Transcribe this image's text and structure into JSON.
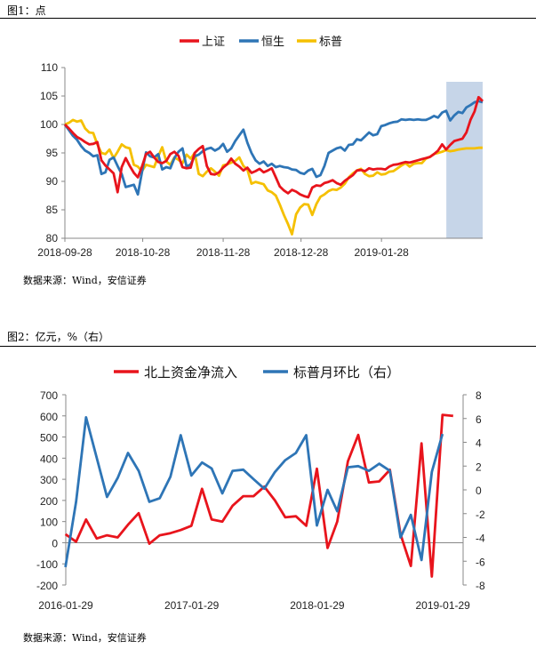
{
  "figure1": {
    "caption": "图1：点",
    "source": "数据来源：Wind，安信证券"
  },
  "figure2": {
    "caption": "图2：亿元，%（右）",
    "source": "数据来源：Wind，安信证券"
  },
  "colors": {
    "red": "#e8141c",
    "blue": "#2e75b6",
    "yellow": "#f5c000",
    "shade": "#c6d5e8"
  },
  "chart_data": [
    {
      "type": "line",
      "ylim": [
        80,
        110
      ],
      "yticks": [
        80,
        85,
        90,
        95,
        100,
        105,
        110
      ],
      "x_range": [
        "2018-09-28",
        "2019-03-08"
      ],
      "x_tick_labels": [
        "2018-09-28",
        "2018-10-28",
        "2018-11-28",
        "2018-12-28",
        "2019-01-28"
      ],
      "shaded_region": [
        "2019-02-22",
        "2019-03-08"
      ],
      "series": [
        {
          "name": "上证",
          "color": "#e8141c",
          "values": [
            100,
            99.3,
            98.5,
            97.8,
            97.4,
            96.9,
            96.5,
            96.6,
            96.9,
            93.7,
            92.8,
            92.1,
            91.4,
            88.1,
            92.5,
            94.1,
            92.7,
            91.5,
            90.7,
            92.6,
            94.8,
            95.2,
            94.2,
            93.4,
            93.2,
            93.6,
            94.8,
            95.2,
            94.5,
            92.5,
            92.3,
            92.4,
            95.0,
            95.7,
            96.2,
            92.7,
            91.3,
            91.2,
            91.6,
            92.4,
            93.0,
            94.0,
            93.1,
            92.6,
            91.9,
            92.4,
            91.5,
            91.8,
            92.2,
            91.6,
            91.9,
            92.3,
            90.7,
            89.1,
            88.4,
            87.9,
            88.5,
            88.2,
            87.7,
            87.4,
            87.2,
            88.9,
            89.3,
            89.2,
            89.7,
            89.9,
            90.2,
            89.7,
            89.4,
            90.1,
            90.6,
            91.1,
            91.9,
            92.0,
            91.8,
            92.3,
            92.1,
            92.2,
            92.2,
            92.1,
            92.6,
            92.9,
            93.0,
            93.2,
            93.4,
            93.3,
            93.5,
            93.7,
            93.9,
            94.1,
            94.3,
            94.8,
            95.4,
            96.5,
            95.6,
            96.4,
            97.1,
            97.3,
            97.5,
            98.6,
            100.8,
            102.3,
            104.8,
            104.1
          ]
        },
        {
          "name": "恒生",
          "color": "#2e75b6",
          "values": [
            100,
            99.0,
            98.0,
            97.3,
            96.2,
            95.4,
            95.0,
            94.4,
            94.6,
            91.3,
            91.6,
            93.8,
            94.2,
            92.7,
            91.3,
            89.0,
            89.2,
            89.4,
            87.7,
            91.6,
            95.1,
            94.4,
            94.2,
            94.8,
            92.1,
            92.5,
            92.3,
            94.1,
            95.2,
            95.8,
            92.6,
            93.0,
            94.4,
            94.7,
            95.3,
            95.7,
            95.9,
            95.4,
            95.8,
            96.6,
            95.2,
            95.8,
            97.1,
            98.1,
            99.1,
            96.8,
            95.0,
            93.7,
            93.1,
            93.5,
            92.7,
            93.1,
            92.5,
            92.7,
            92.5,
            92.4,
            92.1,
            92.0,
            91.5,
            91.3,
            91.9,
            92.2,
            90.8,
            91.1,
            92.7,
            95.0,
            95.4,
            95.8,
            96.0,
            95.4,
            96.4,
            96.5,
            97.4,
            97.2,
            97.9,
            98.6,
            98.1,
            98.3,
            99.7,
            99.9,
            100.2,
            100.4,
            100.5,
            100.9,
            100.8,
            100.9,
            100.8,
            100.9,
            100.8,
            100.8,
            101.1,
            101.5,
            101.2,
            102.1,
            102.4,
            100.7,
            101.6,
            102.2,
            102.0,
            103.0,
            103.4,
            103.9,
            104.1,
            103.9
          ]
        },
        {
          "name": "标普",
          "color": "#f5c000",
          "values": [
            100,
            100.3,
            100.8,
            100.5,
            100.7,
            99.3,
            98.6,
            98.5,
            96.5,
            95.0,
            94.8,
            95.6,
            94.1,
            95.2,
            96.5,
            96.0,
            95.8,
            92.9,
            92.6,
            91.8,
            92.9,
            92.7,
            92.5,
            94.4,
            96.0,
            93.5,
            92.9,
            94.2,
            93.8,
            93.2,
            94.7,
            94.0,
            95.0,
            91.3,
            90.9,
            91.7,
            92.3,
            91.7,
            91.0,
            92.8,
            93.0,
            93.3,
            93.6,
            94.2,
            92.7,
            92.1,
            89.6,
            89.9,
            89.7,
            89.5,
            88.4,
            88.1,
            87.5,
            85.9,
            84.1,
            82.5,
            80.7,
            84.2,
            85.4,
            86.0,
            85.9,
            84.1,
            86.0,
            87.3,
            87.7,
            88.3,
            88.6,
            88.5,
            88.9,
            89.6,
            90.7,
            91.4,
            91.9,
            92.2,
            91.3,
            90.9,
            91.0,
            91.6,
            91.2,
            91.3,
            91.7,
            91.8,
            92.3,
            92.8,
            93.2,
            92.6,
            93.1,
            93.2,
            93.2,
            94.0,
            94.3,
            94.8,
            95.0,
            95.2,
            95.5,
            95.3,
            95.4,
            95.6,
            95.7,
            95.8,
            95.8,
            95.8,
            95.9,
            95.9
          ]
        }
      ]
    },
    {
      "type": "line",
      "ylim": [
        -200,
        700
      ],
      "yticks": [
        -200,
        -100,
        0,
        100,
        200,
        300,
        400,
        500,
        600,
        700
      ],
      "y2lim": [
        -8,
        8
      ],
      "y2ticks": [
        -8,
        -6,
        -4,
        -2,
        0,
        2,
        4,
        6,
        8
      ],
      "x_range": [
        "2016-01-29",
        "2019-03-29"
      ],
      "x_tick_labels": [
        "2016-01-29",
        "2017-01-29",
        "2018-01-29",
        "2019-01-29"
      ],
      "series": [
        {
          "name": "北上资金净流入",
          "axis": "left",
          "color": "#e8141c",
          "values": [
            40,
            5,
            110,
            20,
            35,
            25,
            85,
            140,
            -5,
            35,
            45,
            60,
            80,
            255,
            110,
            100,
            175,
            220,
            220,
            265,
            200,
            120,
            125,
            80,
            350,
            -25,
            100,
            385,
            510,
            285,
            290,
            345,
            40,
            -110,
            470,
            -160,
            605,
            600
          ]
        },
        {
          "name": "标普月环比（右）",
          "axis": "right",
          "color": "#2e75b6",
          "values": [
            -6.5,
            -1.0,
            6.1,
            2.7,
            -0.6,
            1.0,
            3.1,
            1.6,
            -1.0,
            -0.7,
            1.1,
            4.6,
            1.2,
            2.3,
            1.8,
            -0.3,
            1.6,
            1.7,
            0.9,
            0.1,
            1.5,
            2.5,
            3.1,
            4.6,
            -3.0,
            0.0,
            -1.8,
            1.9,
            2.0,
            1.6,
            2.2,
            1.6,
            -4.0,
            -2.1,
            -5.9,
            1.5,
            4.7
          ]
        }
      ]
    }
  ]
}
